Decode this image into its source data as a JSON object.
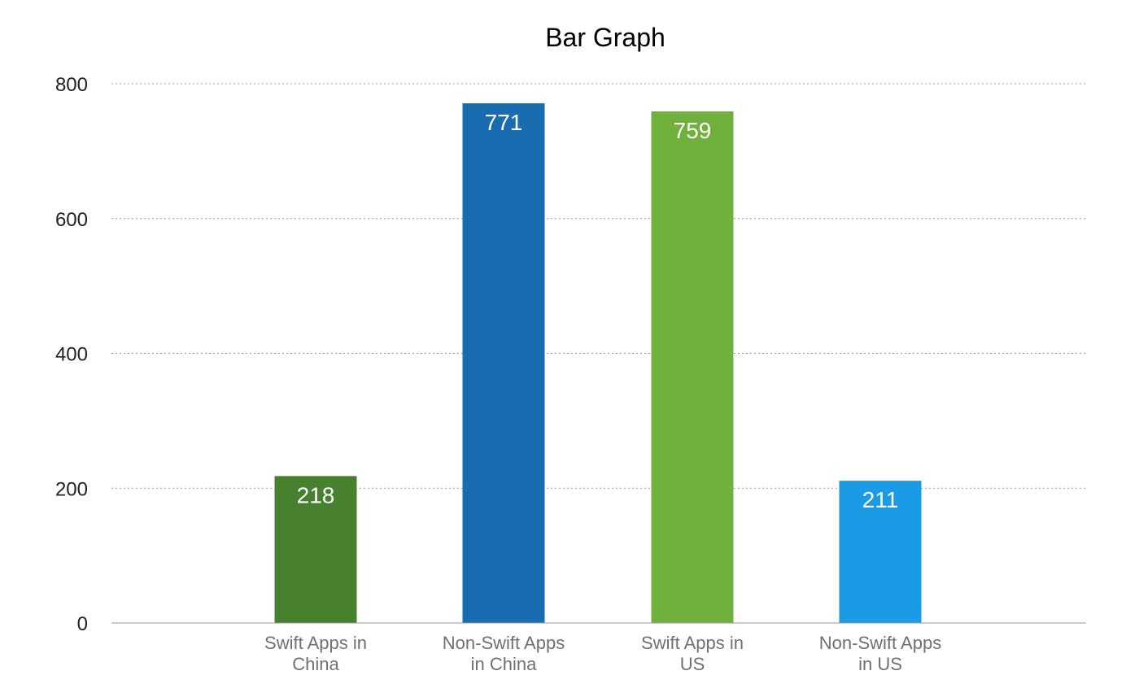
{
  "chart_data": {
    "type": "bar",
    "title": "Bar Graph",
    "xlabel": "",
    "ylabel": "",
    "categories": [
      [
        "Swift Apps in",
        "China"
      ],
      [
        "Non-Swift Apps",
        "in China"
      ],
      [
        "Swift Apps in",
        "US"
      ],
      [
        "Non-Swift Apps",
        "in US"
      ]
    ],
    "values": [
      218,
      771,
      759,
      211
    ],
    "value_labels": [
      "218",
      "771",
      "759",
      "211"
    ],
    "colors": [
      "#47812f",
      "#1a6cb0",
      "#70b03c",
      "#1b9ae6"
    ],
    "ylim": [
      0,
      800
    ],
    "yticks": [
      0,
      200,
      400,
      600,
      800
    ],
    "ytick_labels": [
      "0",
      "200",
      "400",
      "600",
      "800"
    ],
    "grid": true,
    "grid_style": "dotted",
    "legend": "none",
    "colors_meta": {
      "gridline": "#9a9a9a",
      "baseline": "#9a9a9a",
      "tick_text": "#222222",
      "category_text": "#707070",
      "data_label_text": "#ffffff"
    }
  }
}
